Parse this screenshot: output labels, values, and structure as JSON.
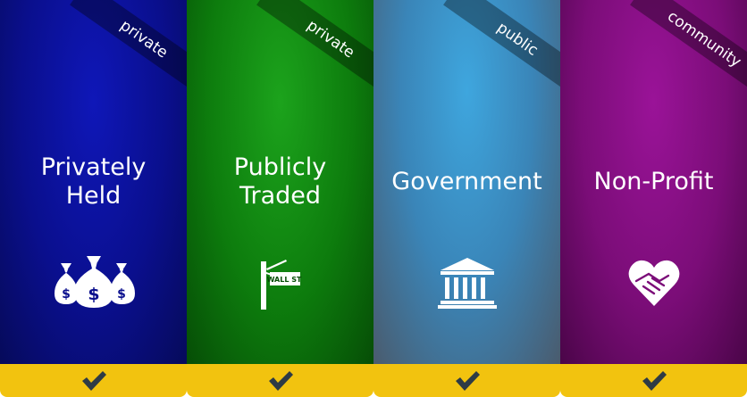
{
  "cards": [
    {
      "ribbon": "private",
      "title": "Privately\nHeld",
      "icon": "money-bags-icon",
      "checked": true,
      "color": "#0a0f8d"
    },
    {
      "ribbon": "private",
      "title": "Publicly\nTraded",
      "icon": "wall-street-sign-icon",
      "icon_text": "WALL ST",
      "checked": true,
      "color": "#0d7c0d"
    },
    {
      "ribbon": "public",
      "title": "Government",
      "icon": "government-building-icon",
      "checked": true,
      "color": "#3a85b8"
    },
    {
      "ribbon": "community",
      "title": "Non-Profit",
      "icon": "handshake-heart-icon",
      "checked": true,
      "color": "#7b0d78"
    }
  ],
  "footer_color": "#f2c30f",
  "check_icon": "checkmark-icon"
}
